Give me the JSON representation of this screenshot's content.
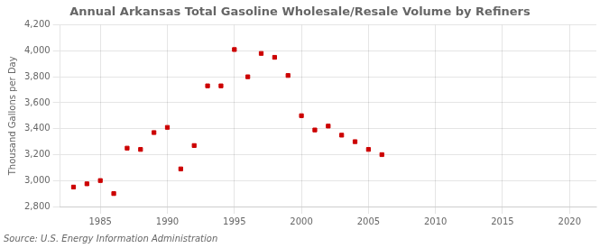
{
  "chart_data": {
    "type": "scatter",
    "title": "Annual Arkansas Total Gasoline Wholesale/Resale Volume by Refiners",
    "ylabel": "Thousand Gallons per Day",
    "annotations": [
      "Source: U.S. Energy Information Administration"
    ],
    "x": [
      1983,
      1984,
      1985,
      1986,
      1987,
      1988,
      1989,
      1990,
      1991,
      1992,
      1993,
      1994,
      1995,
      1996,
      1997,
      1998,
      1999,
      2000,
      2001,
      2002,
      2003,
      2004,
      2005,
      2006
    ],
    "values": [
      2950,
      2975,
      3000,
      2900,
      3250,
      3240,
      3370,
      3410,
      3090,
      3270,
      3730,
      3730,
      4010,
      3800,
      3980,
      3950,
      3810,
      3500,
      3390,
      3420,
      3350,
      3300,
      3240,
      3200
    ],
    "color": "#cc0000",
    "marker": "square",
    "grid": true,
    "xlim": [
      1982,
      2022
    ],
    "xticks": [
      1985,
      1990,
      1995,
      2000,
      2005,
      2010,
      2015,
      2020
    ],
    "ylim": [
      2800,
      4200
    ],
    "yticks": [
      {
        "value": 2800,
        "label": "2,800"
      },
      {
        "value": 3000,
        "label": "3,000"
      },
      {
        "value": 3200,
        "label": "3,200"
      },
      {
        "value": 3400,
        "label": "3,400"
      },
      {
        "value": 3600,
        "label": "3,600"
      },
      {
        "value": 3800,
        "label": "3,800"
      },
      {
        "value": 4000,
        "label": "4,000"
      },
      {
        "value": 4200,
        "label": "4,200"
      }
    ]
  }
}
